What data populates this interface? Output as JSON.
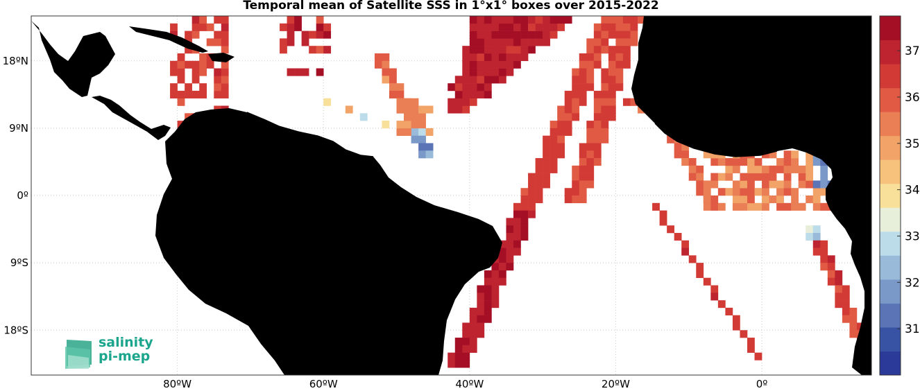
{
  "title": "Temporal mean of Satellite SSS in 1°x1° boxes over 2015-2022",
  "logo": {
    "line1": "salinity",
    "line2": "pi-mep"
  },
  "map": {
    "lon_range": [
      -100,
      15
    ],
    "lat_range": [
      -24,
      24
    ],
    "lat_labels": [
      {
        "lat": 18,
        "text": "18ºN"
      },
      {
        "lat": 9,
        "text": "9ºN"
      },
      {
        "lat": 0,
        "text": "0º"
      },
      {
        "lat": -9,
        "text": "9ºS"
      },
      {
        "lat": -18,
        "text": "18ºS"
      }
    ],
    "lon_labels": [
      {
        "lon": -80,
        "text": "80ºW"
      },
      {
        "lon": -60,
        "text": "60ºW"
      },
      {
        "lon": -40,
        "text": "40ºW"
      },
      {
        "lon": -20,
        "text": "20ºW"
      },
      {
        "lon": 0,
        "text": "0º"
      }
    ],
    "land_color": "#808080",
    "grid": true
  },
  "colorbar": {
    "range": [
      30,
      37.75
    ],
    "ticks": [
      "37",
      "36",
      "35",
      "34",
      "33",
      "32",
      "31"
    ],
    "colors": [
      "#2b3a98",
      "#3953a4",
      "#5a74b5",
      "#7a99c8",
      "#99bbd9",
      "#bddcea",
      "#e7eed9",
      "#f9e09a",
      "#f7c27c",
      "#f1a368",
      "#ea7f55",
      "#e05a44",
      "#d23b35",
      "#bd2430",
      "#a50f26"
    ]
  }
}
